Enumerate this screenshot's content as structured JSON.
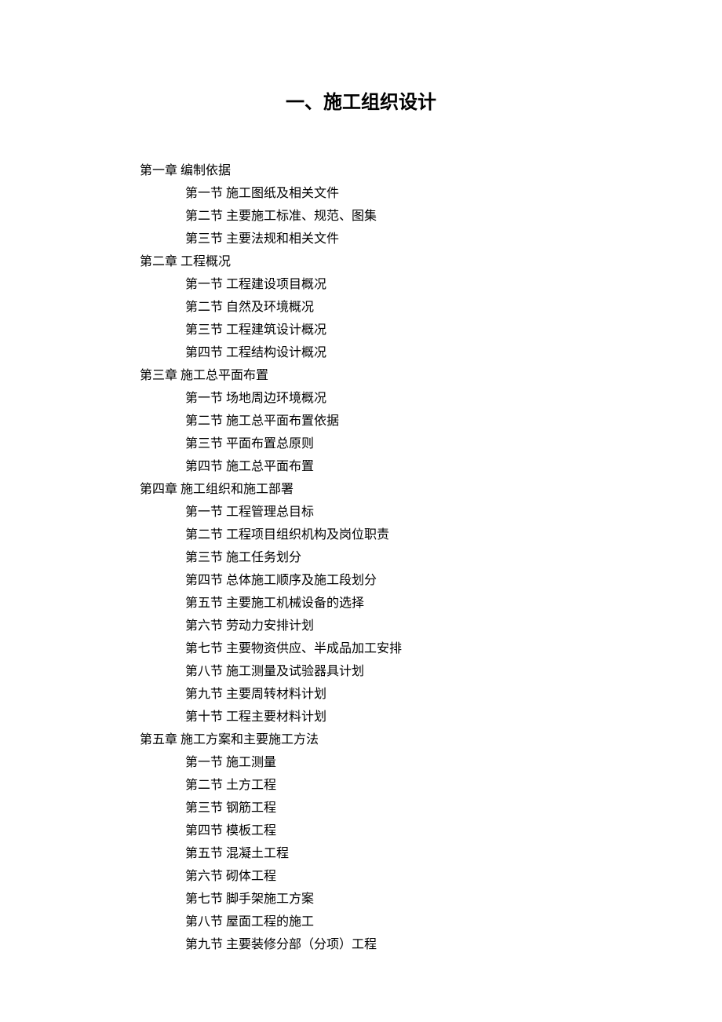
{
  "title": "一、施工组织设计",
  "chapters": [
    {
      "label": "第一章    编制依据",
      "sections": [
        "第一节  施工图纸及相关文件",
        "第二节  主要施工标准、规范、图集",
        "第三节  主要法规和相关文件"
      ]
    },
    {
      "label": "第二章    工程概况",
      "sections": [
        "第一节  工程建设项目概况",
        "第二节  自然及环境概况",
        "第三节  工程建筑设计概况",
        "第四节  工程结构设计概况"
      ]
    },
    {
      "label": "第三章    施工总平面布置",
      "sections": [
        "第一节  场地周边环境概况",
        "第二节  施工总平面布置依据",
        "第三节  平面布置总原则",
        "第四节  施工总平面布置"
      ]
    },
    {
      "label": "第四章    施工组织和施工部署",
      "sections": [
        "第一节  工程管理总目标",
        "第二节  工程项目组织机构及岗位职责",
        "第三节  施工任务划分",
        "第四节  总体施工顺序及施工段划分",
        "第五节  主要施工机械设备的选择",
        "第六节  劳动力安排计划",
        "第七节  主要物资供应、半成品加工安排",
        "第八节  施工测量及试验器具计划",
        "第九节  主要周转材料计划",
        " 第十节  工程主要材料计划"
      ]
    },
    {
      "label": "第五章    施工方案和主要施工方法",
      "sections": [
        "第一节  施工测量",
        "第二节  土方工程",
        "第三节  钢筋工程",
        "第四节  模板工程",
        "第五节  混凝土工程",
        "第六节  砌体工程",
        "第七节  脚手架施工方案",
        " 第八节  屋面工程的施工",
        " 第九节  主要装修分部（分项）工程"
      ]
    }
  ]
}
